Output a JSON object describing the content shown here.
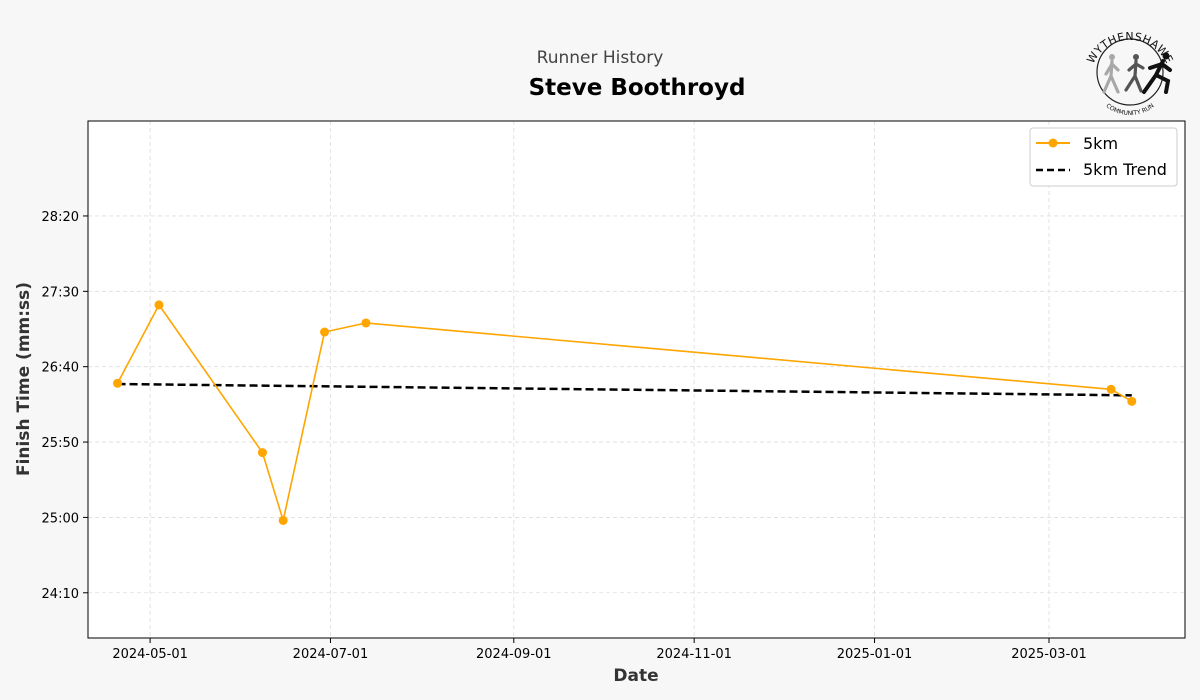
{
  "header": {
    "supertitle": "Runner History",
    "title": "Steve Boothroyd"
  },
  "logo": {
    "top_text": "WYTHENSHAWE",
    "bottom_text": "COMMUNITY RUN"
  },
  "chart_data": {
    "type": "line",
    "xlabel": "Date",
    "ylabel": "Finish Time (mm:ss)",
    "x_range": [
      "2024-04-10",
      "2025-04-16"
    ],
    "y_range_seconds": [
      1420,
      1763
    ],
    "x_ticks": [
      {
        "date": "2024-05-01",
        "label": "2024-05-01"
      },
      {
        "date": "2024-07-01",
        "label": "2024-07-01"
      },
      {
        "date": "2024-09-01",
        "label": "2024-09-01"
      },
      {
        "date": "2024-11-01",
        "label": "2024-11-01"
      },
      {
        "date": "2025-01-01",
        "label": "2025-01-01"
      },
      {
        "date": "2025-03-01",
        "label": "2025-03-01"
      }
    ],
    "y_ticks": [
      {
        "seconds": 1450,
        "label": "24:10"
      },
      {
        "seconds": 1500,
        "label": "25:00"
      },
      {
        "seconds": 1550,
        "label": "25:50"
      },
      {
        "seconds": 1600,
        "label": "26:40"
      },
      {
        "seconds": 1650,
        "label": "27:30"
      },
      {
        "seconds": 1700,
        "label": "28:20"
      }
    ],
    "grid": true,
    "legend_position": "top-right",
    "series": [
      {
        "name": "5km",
        "color": "#FFA500",
        "style": "line-with-markers",
        "points": [
          {
            "x": "2024-04-20",
            "y": 1589
          },
          {
            "x": "2024-05-04",
            "y": 1641
          },
          {
            "x": "2024-06-08",
            "y": 1543
          },
          {
            "x": "2024-06-15",
            "y": 1498
          },
          {
            "x": "2024-06-29",
            "y": 1623
          },
          {
            "x": "2024-07-13",
            "y": 1629
          },
          {
            "x": "2025-03-22",
            "y": 1585
          },
          {
            "x": "2025-03-29",
            "y": 1577
          }
        ]
      },
      {
        "name": "5km Trend",
        "color": "#000000",
        "style": "dashed",
        "points": [
          {
            "x": "2024-04-20",
            "y": 1588.5
          },
          {
            "x": "2025-03-29",
            "y": 1581
          }
        ]
      }
    ]
  }
}
